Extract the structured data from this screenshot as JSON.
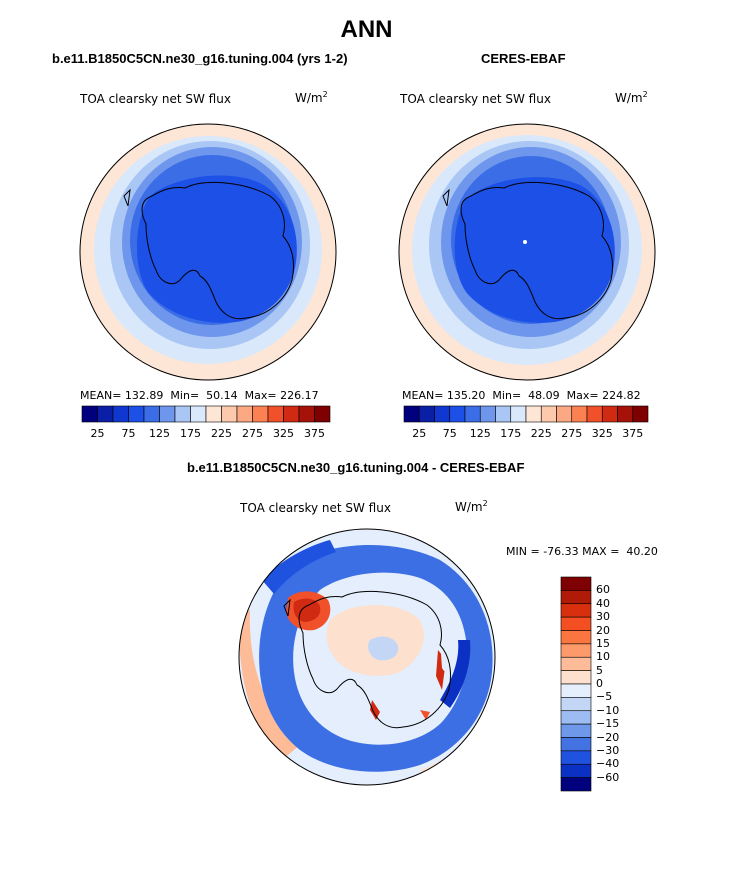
{
  "title": "ANN",
  "panels": [
    {
      "title": "b.e11.B1850C5CN.ne30_g16.tuning.004 (yrs 1-2)",
      "field": "TOA clearsky net SW flux",
      "units": "W/m",
      "units_sup": "2",
      "mean_label": "MEAN=",
      "mean": "132.89",
      "min_label": "Min=",
      "min": "50.14",
      "max_label": "Max=",
      "max": "226.17"
    },
    {
      "title": "CERES-EBAF",
      "field": "TOA clearsky net SW flux",
      "units": "W/m",
      "units_sup": "2",
      "mean_label": "MEAN=",
      "mean": "135.20",
      "min_label": "Min=",
      "min": "48.09",
      "max_label": "Max=",
      "max": "224.82"
    }
  ],
  "colorbar_abs": {
    "colors": [
      "#00007f",
      "#0a1fa6",
      "#1038d0",
      "#1c50e6",
      "#3a6de6",
      "#6d96ec",
      "#a9c6f5",
      "#d9e8fb",
      "#fde6d6",
      "#fcc9ad",
      "#fca883",
      "#fb8052",
      "#f0502a",
      "#d02a12",
      "#a6110a",
      "#7f0000"
    ],
    "labels": [
      "25",
      "75",
      "125",
      "175",
      "225",
      "275",
      "325",
      "375"
    ]
  },
  "diff_panel": {
    "title": "b.e11.B1850C5CN.ne30_g16.tuning.004 - CERES-EBAF",
    "field": "TOA clearsky net SW flux",
    "units": "W/m",
    "units_sup": "2",
    "min_label": "MIN =",
    "min": "-76.33",
    "max_label": "MAX =",
    "max": "40.20"
  },
  "colorbar_diff": {
    "colors": [
      "#7f0000",
      "#b01a08",
      "#d8300e",
      "#f34f22",
      "#fa7640",
      "#fc9a6c",
      "#fdbb98",
      "#fde0cd",
      "#e4eefc",
      "#c3d6f6",
      "#9dbcf2",
      "#6e98ea",
      "#4373e3",
      "#1f52df",
      "#0b30c4",
      "#00007f"
    ],
    "labels": [
      "60",
      "40",
      "30",
      "20",
      "15",
      "10",
      "5",
      "0",
      "−5",
      "−10",
      "−15",
      "−20",
      "−30",
      "−40",
      "−60"
    ]
  }
}
